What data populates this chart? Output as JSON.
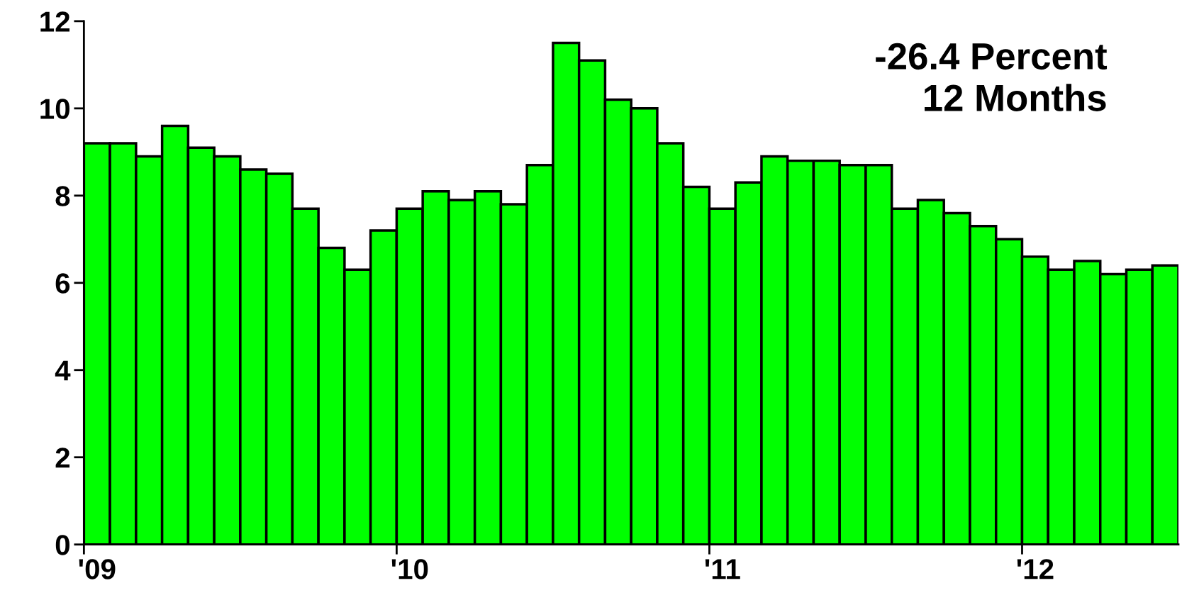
{
  "chart_data": {
    "type": "bar",
    "categories": [
      "'09",
      null,
      null,
      null,
      null,
      null,
      null,
      null,
      null,
      null,
      null,
      null,
      "'10",
      null,
      null,
      null,
      null,
      null,
      null,
      null,
      null,
      null,
      null,
      null,
      "'11",
      null,
      null,
      null,
      null,
      null,
      null,
      null,
      null,
      null,
      null,
      null,
      "'12",
      null,
      null,
      null,
      null,
      null
    ],
    "values": [
      9.2,
      9.2,
      8.9,
      9.6,
      9.1,
      8.9,
      8.6,
      8.5,
      7.7,
      6.8,
      6.3,
      7.2,
      7.7,
      8.1,
      7.9,
      8.1,
      7.8,
      8.7,
      11.5,
      11.1,
      10.2,
      10.0,
      9.2,
      8.2,
      7.7,
      8.3,
      8.9,
      8.8,
      8.8,
      8.7,
      8.7,
      7.7,
      7.9,
      7.6,
      7.3,
      7.0,
      6.6,
      6.3,
      6.5,
      6.2,
      6.3,
      6.4
    ],
    "color": "#00ff00",
    "ylim": [
      0,
      12
    ],
    "yticks": [
      0,
      2,
      4,
      6,
      8,
      10,
      12
    ],
    "grid": false,
    "legend": false,
    "annotations": [
      "-26.4 Percent\n12 Months"
    ]
  }
}
